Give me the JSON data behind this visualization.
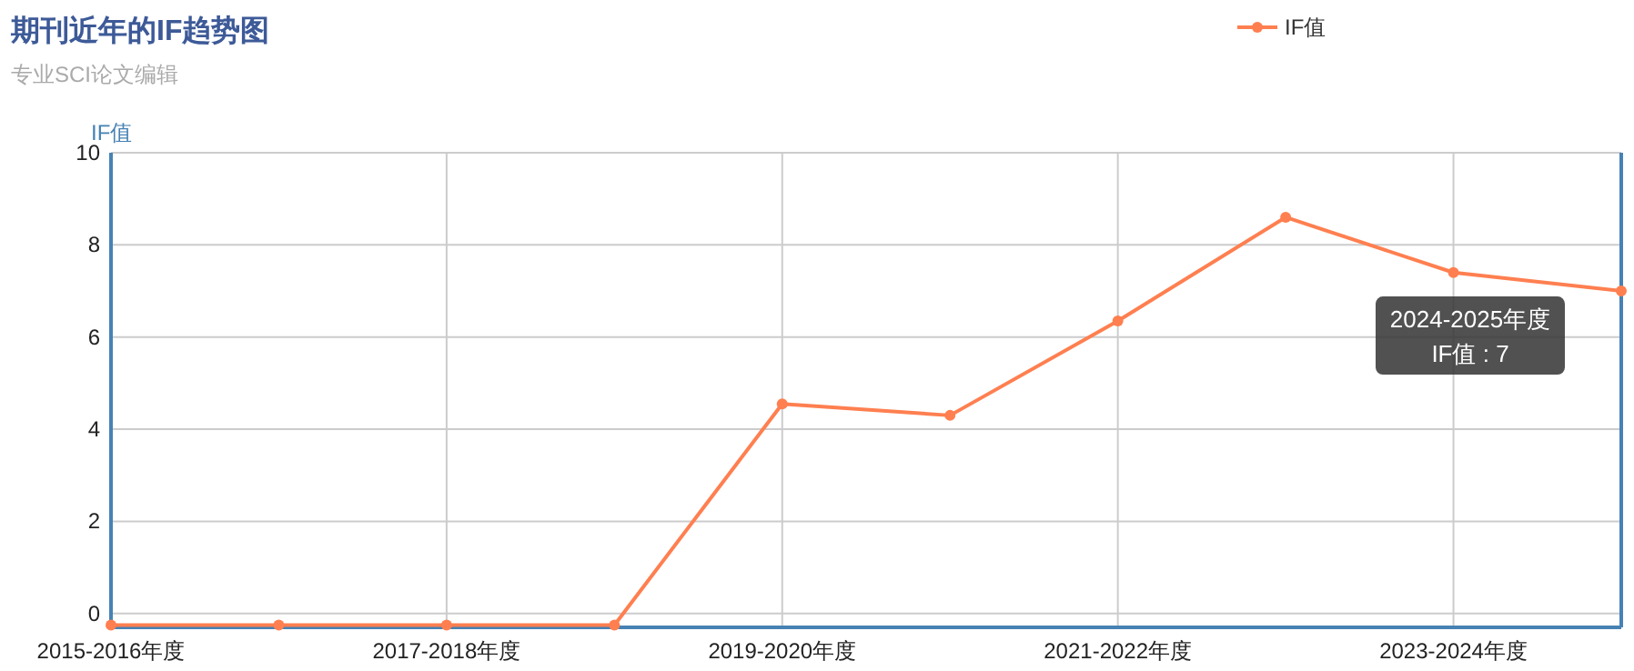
{
  "chart_data": {
    "type": "line",
    "title": "期刊近年的IF趋势图",
    "subtitle": "专业SCI论文编辑",
    "ylabel": "IF值",
    "categories": [
      "2015-2016年度",
      null,
      "2017-2018年度",
      null,
      "2019-2020年度",
      null,
      "2021-2022年度",
      null,
      "2023-2024年度",
      null
    ],
    "series": [
      {
        "name": "IF值",
        "color": "#ff7f50",
        "values": [
          -0.25,
          -0.25,
          -0.25,
          -0.25,
          4.55,
          4.3,
          6.35,
          8.6,
          7.4,
          7.0
        ]
      }
    ],
    "ylim": [
      -0.3,
      10
    ],
    "yticks": [
      0,
      2,
      4,
      6,
      8,
      10
    ],
    "grid": true,
    "legend": "top",
    "marker": "circle",
    "line_style": "solid",
    "annotations": [
      "2024-2025年度\nIF值 : 7"
    ]
  }
}
